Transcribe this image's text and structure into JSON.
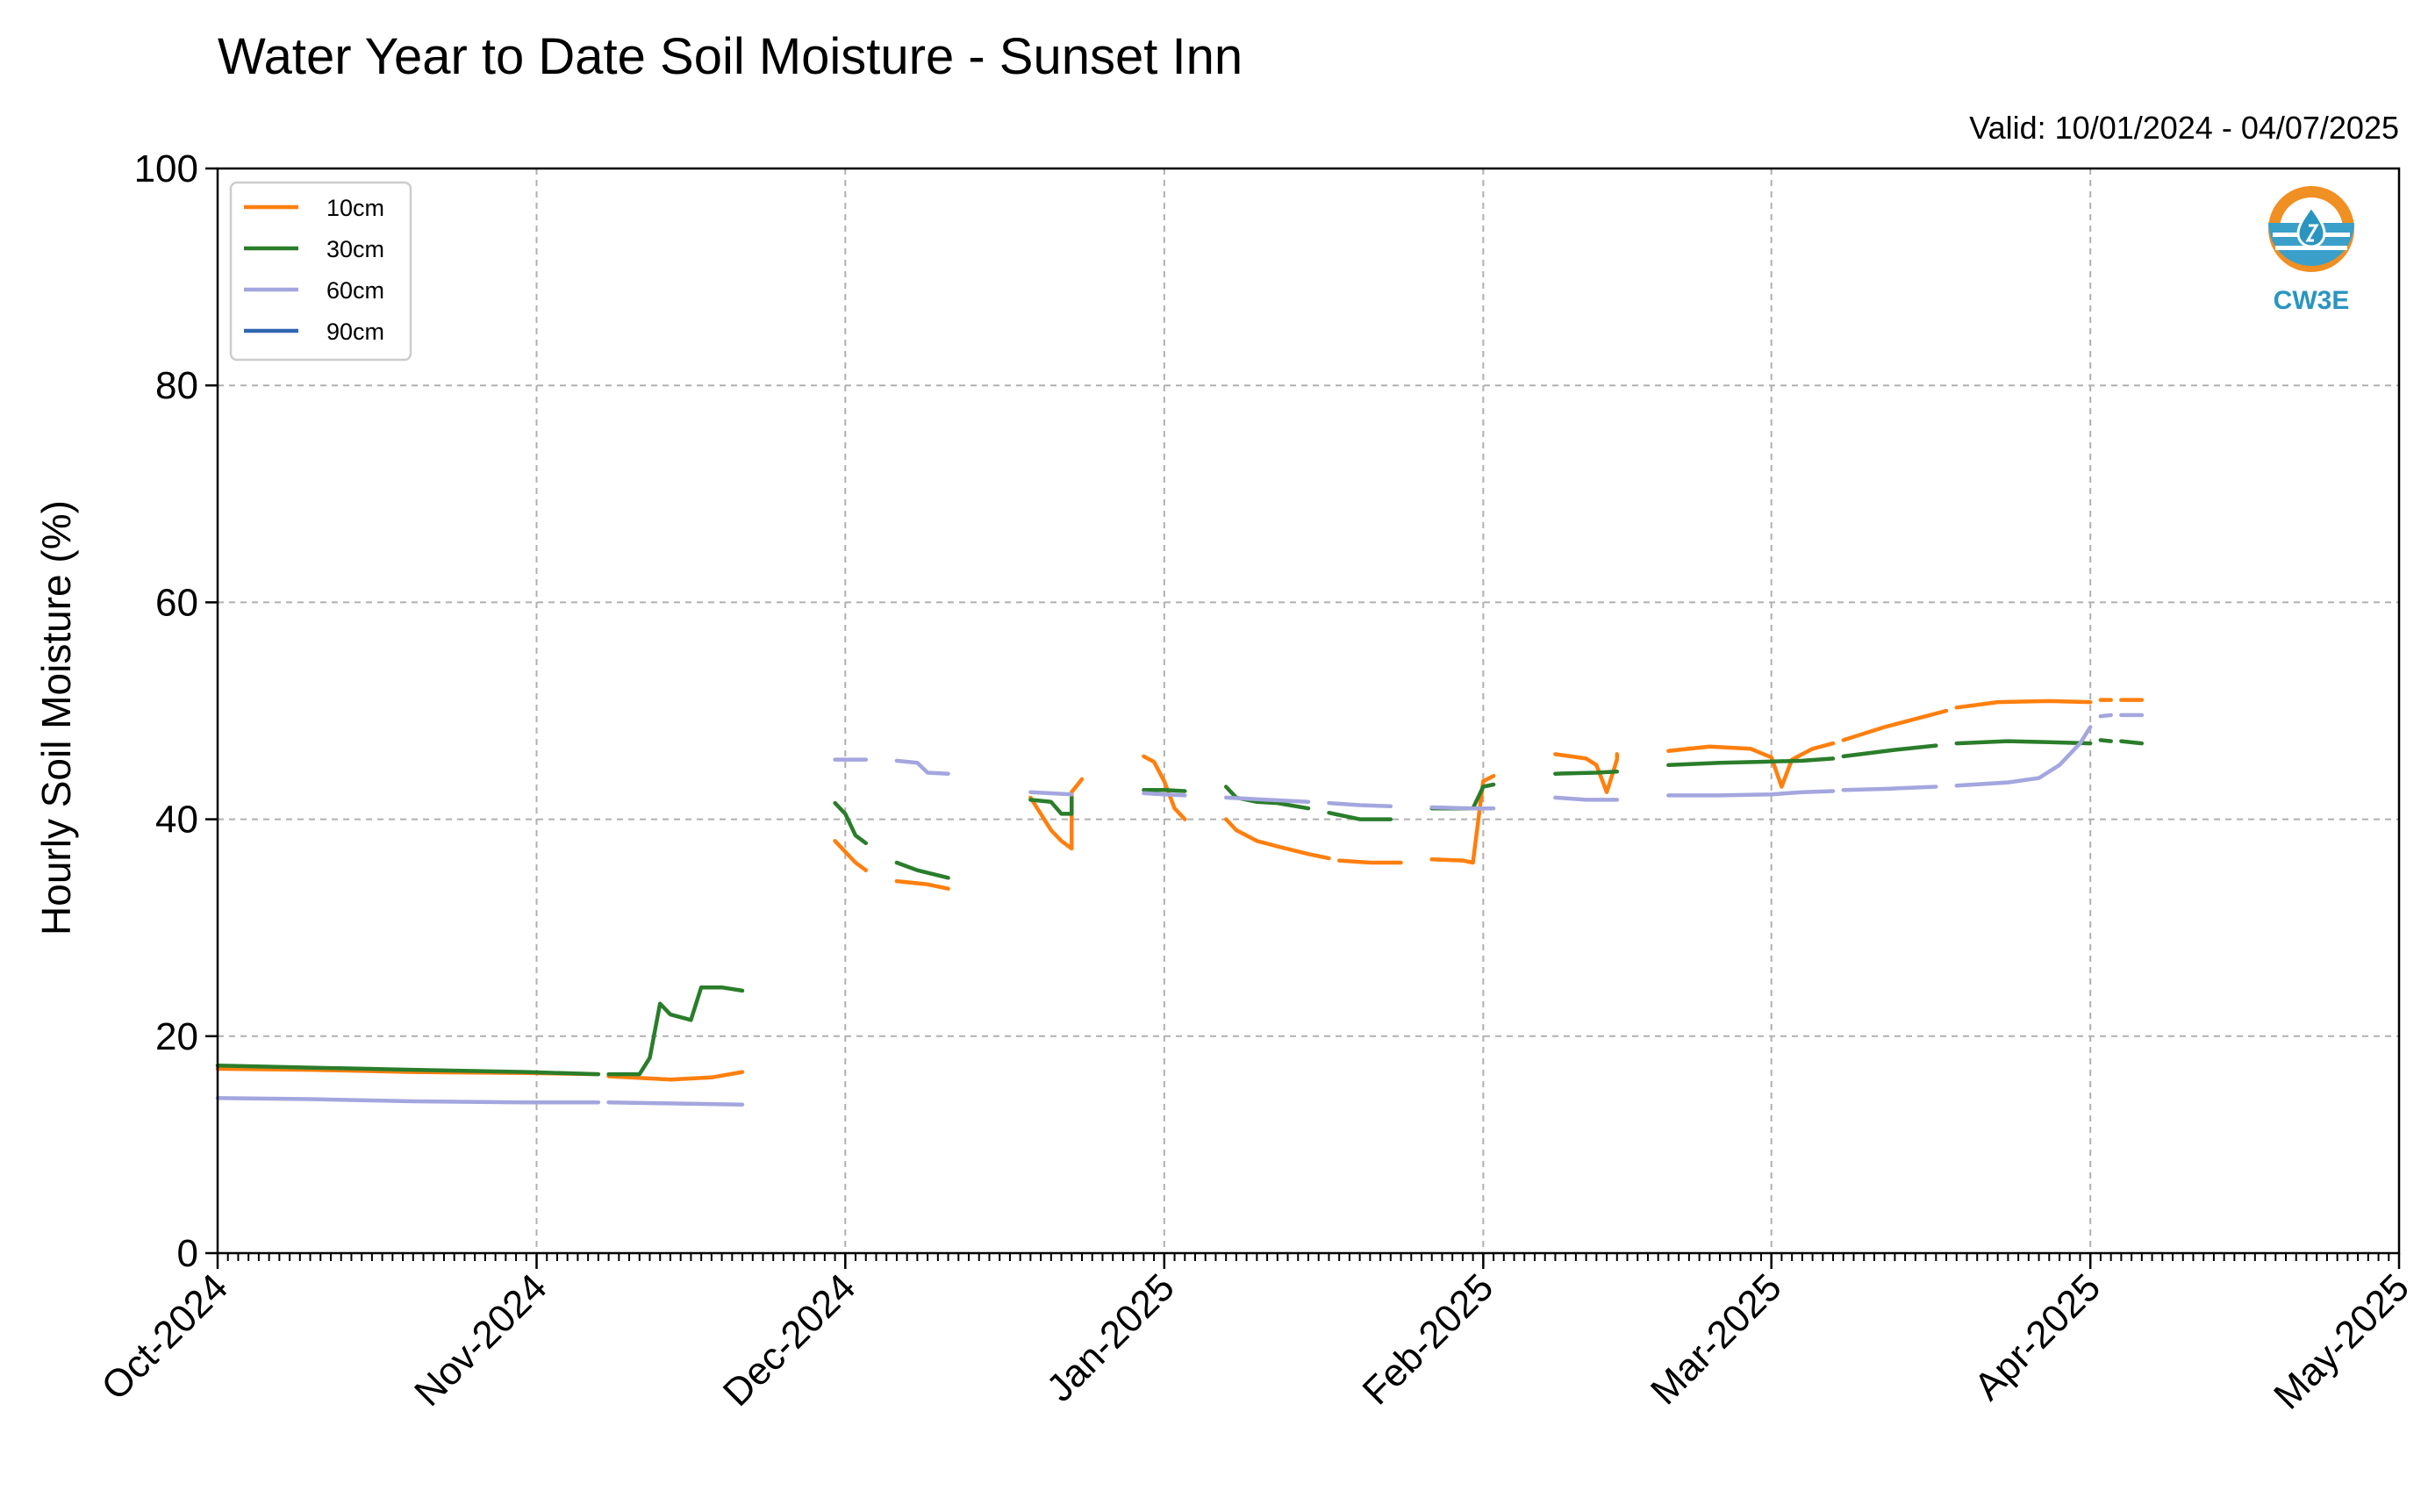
{
  "title": "Water Year to Date Soil Moisture - Sunset Inn",
  "subtitle": "Valid: 10/01/2024 - 04/07/2025",
  "logo": {
    "text": "CW3E",
    "icon": "cw3e-water-drop-logo"
  },
  "chart_data": {
    "type": "line",
    "title": "Water Year to Date Soil Moisture - Sunset Inn",
    "xlabel": "",
    "ylabel": "Hourly Soil Moisture (%)",
    "ylim": [
      0,
      100
    ],
    "xlim": [
      "2024-10-01",
      "2025-05-01"
    ],
    "yticks": [
      0,
      20,
      40,
      60,
      80,
      100
    ],
    "xticks": [
      {
        "date": "2024-10-01",
        "label": "Oct-2024"
      },
      {
        "date": "2024-11-01",
        "label": "Nov-2024"
      },
      {
        "date": "2024-12-01",
        "label": "Dec-2024"
      },
      {
        "date": "2025-01-01",
        "label": "Jan-2025"
      },
      {
        "date": "2025-02-01",
        "label": "Feb-2025"
      },
      {
        "date": "2025-03-01",
        "label": "Mar-2025"
      },
      {
        "date": "2025-04-01",
        "label": "Apr-2025"
      },
      {
        "date": "2025-05-01",
        "label": "May-2025"
      }
    ],
    "grid": true,
    "legend_position": "top-left",
    "series": [
      {
        "name": "10cm",
        "color": "#ff7f0e",
        "segments": [
          [
            [
              "2024-10-01",
              17.0
            ],
            [
              "2024-10-10",
              16.9
            ],
            [
              "2024-10-20",
              16.7
            ],
            [
              "2024-10-31",
              16.6
            ],
            [
              "2024-11-07",
              16.5
            ]
          ],
          [
            [
              "2024-11-08",
              16.3
            ],
            [
              "2024-11-14",
              16.0
            ],
            [
              "2024-11-18",
              16.2
            ],
            [
              "2024-11-21",
              16.7
            ]
          ],
          [
            [
              "2024-11-30",
              38.0
            ],
            [
              "2024-12-01",
              37.0
            ],
            [
              "2024-12-02",
              36.0
            ],
            [
              "2024-12-03",
              35.3
            ]
          ],
          [
            [
              "2024-12-06",
              34.3
            ],
            [
              "2024-12-09",
              34.0
            ],
            [
              "2024-12-11",
              33.6
            ]
          ],
          [
            [
              "2024-12-19",
              42.0
            ],
            [
              "2024-12-20",
              40.5
            ],
            [
              "2024-12-21",
              39.0
            ],
            [
              "2024-12-22",
              38.0
            ],
            [
              "2024-12-23",
              37.3
            ],
            [
              "2024-12-23",
              42.5
            ],
            [
              "2024-12-24",
              43.7
            ]
          ],
          [
            [
              "2024-12-30",
              45.8
            ],
            [
              "2024-12-31",
              45.3
            ],
            [
              "2025-01-01",
              43.5
            ],
            [
              "2025-01-02",
              41.0
            ],
            [
              "2025-01-03",
              40.0
            ]
          ],
          [
            [
              "2025-01-07",
              40.0
            ],
            [
              "2025-01-08",
              39.0
            ],
            [
              "2025-01-10",
              38.0
            ],
            [
              "2025-01-12",
              37.5
            ],
            [
              "2025-01-15",
              36.8
            ],
            [
              "2025-01-17",
              36.4
            ]
          ],
          [
            [
              "2025-01-18",
              36.2
            ],
            [
              "2025-01-21",
              36.0
            ],
            [
              "2025-01-24",
              36.0
            ]
          ],
          [
            [
              "2025-01-27",
              36.3
            ],
            [
              "2025-01-30",
              36.2
            ],
            [
              "2025-01-31",
              36.0
            ],
            [
              "2025-02-01",
              43.5
            ],
            [
              "2025-02-02",
              44.0
            ]
          ],
          [
            [
              "2025-02-08",
              46.0
            ],
            [
              "2025-02-11",
              45.6
            ],
            [
              "2025-02-12",
              45.0
            ],
            [
              "2025-02-13",
              42.5
            ],
            [
              "2025-02-14",
              45.5
            ],
            [
              "2025-02-14",
              46.0
            ]
          ],
          [
            [
              "2025-02-19",
              46.3
            ],
            [
              "2025-02-23",
              46.7
            ],
            [
              "2025-02-27",
              46.5
            ],
            [
              "2025-03-01",
              45.7
            ],
            [
              "2025-03-02",
              43.0
            ],
            [
              "2025-03-03",
              45.5
            ],
            [
              "2025-03-05",
              46.5
            ],
            [
              "2025-03-07",
              47.0
            ]
          ],
          [
            [
              "2025-03-08",
              47.3
            ],
            [
              "2025-03-12",
              48.5
            ],
            [
              "2025-03-16",
              49.5
            ],
            [
              "2025-03-18",
              50.0
            ]
          ],
          [
            [
              "2025-03-19",
              50.3
            ],
            [
              "2025-03-23",
              50.8
            ],
            [
              "2025-03-28",
              50.9
            ],
            [
              "2025-04-01",
              50.8
            ]
          ],
          [
            [
              "2025-04-02",
              51.0
            ],
            [
              "2025-04-03",
              51.0
            ]
          ],
          [
            [
              "2025-04-04",
              51.0
            ],
            [
              "2025-04-06",
              51.0
            ]
          ]
        ]
      },
      {
        "name": "30cm",
        "color": "#2a7d2a",
        "segments": [
          [
            [
              "2024-10-01",
              17.3
            ],
            [
              "2024-10-10",
              17.1
            ],
            [
              "2024-10-20",
              16.9
            ],
            [
              "2024-10-31",
              16.7
            ],
            [
              "2024-11-07",
              16.5
            ]
          ],
          [
            [
              "2024-11-08",
              16.5
            ],
            [
              "2024-11-11",
              16.5
            ],
            [
              "2024-11-12",
              18.0
            ],
            [
              "2024-11-13",
              23.0
            ],
            [
              "2024-11-14",
              22.0
            ],
            [
              "2024-11-16",
              21.5
            ],
            [
              "2024-11-17",
              24.5
            ],
            [
              "2024-11-19",
              24.5
            ],
            [
              "2024-11-21",
              24.2
            ]
          ],
          [
            [
              "2024-11-30",
              41.5
            ],
            [
              "2024-12-01",
              40.5
            ],
            [
              "2024-12-02",
              38.5
            ],
            [
              "2024-12-03",
              37.8
            ]
          ],
          [
            [
              "2024-12-06",
              36.0
            ],
            [
              "2024-12-08",
              35.3
            ],
            [
              "2024-12-11",
              34.6
            ]
          ],
          [
            [
              "2024-12-19",
              41.8
            ],
            [
              "2024-12-21",
              41.6
            ],
            [
              "2024-12-22",
              40.5
            ],
            [
              "2024-12-23",
              40.5
            ],
            [
              "2024-12-23",
              42.0
            ]
          ],
          [
            [
              "2024-12-30",
              42.7
            ],
            [
              "2025-01-01",
              42.7
            ],
            [
              "2025-01-03",
              42.6
            ]
          ],
          [
            [
              "2025-01-07",
              43.0
            ],
            [
              "2025-01-08",
              42.0
            ],
            [
              "2025-01-10",
              41.6
            ],
            [
              "2025-01-12",
              41.5
            ],
            [
              "2025-01-15",
              41.0
            ]
          ],
          [
            [
              "2025-01-17",
              40.6
            ],
            [
              "2025-01-20",
              40.0
            ],
            [
              "2025-01-23",
              40.0
            ]
          ],
          [
            [
              "2025-01-27",
              41.0
            ],
            [
              "2025-01-31",
              41.0
            ],
            [
              "2025-02-01",
              43.0
            ],
            [
              "2025-02-02",
              43.2
            ]
          ],
          [
            [
              "2025-02-08",
              44.2
            ],
            [
              "2025-02-12",
              44.3
            ],
            [
              "2025-02-14",
              44.4
            ]
          ],
          [
            [
              "2025-02-19",
              45.0
            ],
            [
              "2025-02-24",
              45.2
            ],
            [
              "2025-02-28",
              45.3
            ],
            [
              "2025-03-04",
              45.4
            ],
            [
              "2025-03-07",
              45.6
            ]
          ],
          [
            [
              "2025-03-08",
              45.8
            ],
            [
              "2025-03-13",
              46.4
            ],
            [
              "2025-03-17",
              46.8
            ]
          ],
          [
            [
              "2025-03-19",
              47.0
            ],
            [
              "2025-03-24",
              47.2
            ],
            [
              "2025-03-28",
              47.1
            ],
            [
              "2025-04-01",
              47.0
            ]
          ],
          [
            [
              "2025-04-02",
              47.3
            ],
            [
              "2025-04-03",
              47.2
            ]
          ],
          [
            [
              "2025-04-04",
              47.2
            ],
            [
              "2025-04-06",
              47.0
            ]
          ]
        ]
      },
      {
        "name": "60cm",
        "color": "#a4a6df",
        "segments": [
          [
            [
              "2024-10-01",
              14.3
            ],
            [
              "2024-10-10",
              14.2
            ],
            [
              "2024-10-20",
              14.0
            ],
            [
              "2024-10-31",
              13.9
            ],
            [
              "2024-11-07",
              13.9
            ]
          ],
          [
            [
              "2024-11-08",
              13.9
            ],
            [
              "2024-11-14",
              13.8
            ],
            [
              "2024-11-21",
              13.7
            ]
          ],
          [
            [
              "2024-11-30",
              45.5
            ],
            [
              "2024-12-03",
              45.5
            ]
          ],
          [
            [
              "2024-12-06",
              45.4
            ],
            [
              "2024-12-08",
              45.2
            ],
            [
              "2024-12-09",
              44.3
            ],
            [
              "2024-12-11",
              44.2
            ]
          ],
          [
            [
              "2024-12-19",
              42.5
            ],
            [
              "2024-12-23",
              42.3
            ]
          ],
          [
            [
              "2024-12-30",
              42.4
            ],
            [
              "2025-01-01",
              42.3
            ],
            [
              "2025-01-03",
              42.2
            ]
          ],
          [
            [
              "2025-01-07",
              42.0
            ],
            [
              "2025-01-11",
              41.8
            ],
            [
              "2025-01-15",
              41.6
            ]
          ],
          [
            [
              "2025-01-17",
              41.5
            ],
            [
              "2025-01-20",
              41.3
            ],
            [
              "2025-01-23",
              41.2
            ]
          ],
          [
            [
              "2025-01-27",
              41.1
            ],
            [
              "2025-01-31",
              41.0
            ],
            [
              "2025-02-02",
              41.0
            ]
          ],
          [
            [
              "2025-02-08",
              42.0
            ],
            [
              "2025-02-11",
              41.8
            ],
            [
              "2025-02-14",
              41.8
            ]
          ],
          [
            [
              "2025-02-19",
              42.2
            ],
            [
              "2025-02-24",
              42.2
            ],
            [
              "2025-03-01",
              42.3
            ],
            [
              "2025-03-04",
              42.5
            ],
            [
              "2025-03-07",
              42.6
            ]
          ],
          [
            [
              "2025-03-08",
              42.7
            ],
            [
              "2025-03-12",
              42.8
            ],
            [
              "2025-03-17",
              43.0
            ]
          ],
          [
            [
              "2025-03-19",
              43.1
            ],
            [
              "2025-03-24",
              43.4
            ],
            [
              "2025-03-27",
              43.8
            ],
            [
              "2025-03-29",
              45.0
            ],
            [
              "2025-03-31",
              47.0
            ],
            [
              "2025-04-01",
              48.5
            ]
          ],
          [
            [
              "2025-04-02",
              49.5
            ],
            [
              "2025-04-03",
              49.6
            ]
          ],
          [
            [
              "2025-04-04",
              49.6
            ],
            [
              "2025-04-06",
              49.6
            ]
          ]
        ]
      },
      {
        "name": "90cm",
        "color": "#3165b0",
        "segments": []
      }
    ]
  }
}
